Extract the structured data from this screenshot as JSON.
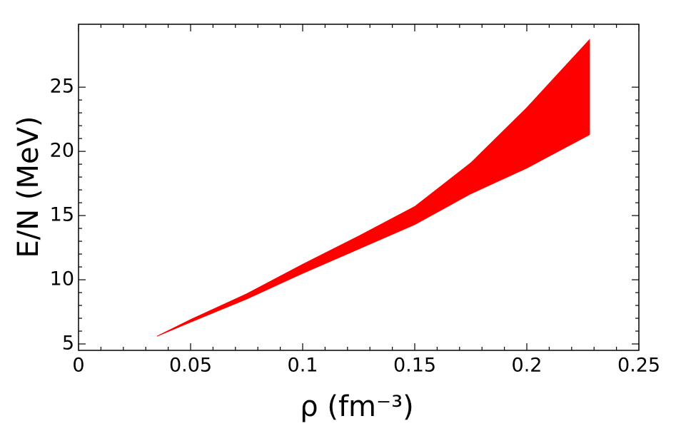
{
  "chart_data": {
    "type": "area",
    "xlabel": "ρ (fm⁻³)",
    "ylabel": "E/N (MeV)",
    "x": [
      0.035,
      0.05,
      0.075,
      0.1,
      0.125,
      0.15,
      0.175,
      0.2,
      0.228
    ],
    "series": [
      {
        "values": [
          5.6,
          6.7,
          8.5,
          10.5,
          12.4,
          14.3,
          16.7,
          18.7,
          21.3
        ]
      },
      {
        "values": [
          5.6,
          6.9,
          8.9,
          11.2,
          13.4,
          15.7,
          19.1,
          23.4,
          28.7
        ]
      }
    ],
    "color": "#ff0000",
    "xlim": [
      0,
      0.25
    ],
    "xticks": [
      0,
      0.05,
      0.1,
      0.15,
      0.2,
      0.25
    ],
    "ylim": [
      4.5,
      29.9
    ],
    "yticks": [
      5,
      10,
      15,
      20,
      25
    ]
  }
}
